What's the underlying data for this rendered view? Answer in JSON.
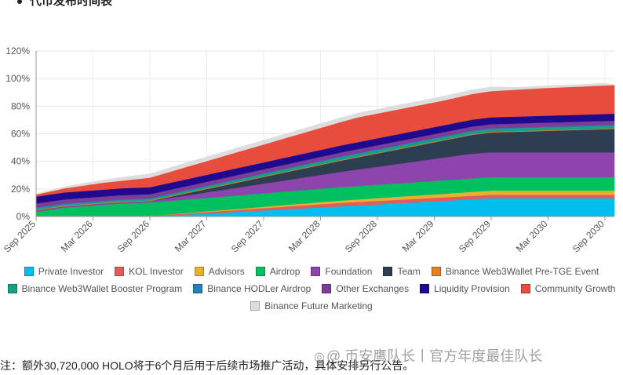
{
  "heading": "代币发布时间表",
  "note": "注：额外30,720,000 HOLO将于6个月后用于后续市场推广活动，具体安排另行公告。",
  "watermark": {
    "icon": "camera-icon",
    "text": "@ 币安鹰队长丨官方年度最佳队长"
  },
  "chart_data": {
    "type": "area",
    "stacked": true,
    "x": [
      0,
      1,
      2,
      3,
      4,
      5,
      6,
      7,
      8,
      9,
      10,
      11,
      12,
      13,
      14,
      15,
      16,
      17,
      18,
      19,
      20,
      21,
      22,
      23,
      24,
      25,
      26,
      27,
      28,
      29,
      30,
      31,
      32,
      33,
      34,
      35,
      36,
      37,
      38,
      39,
      40,
      41,
      42,
      43,
      44,
      45,
      46,
      47,
      48,
      49,
      50,
      51,
      52,
      53,
      54,
      55,
      56,
      57,
      58,
      59,
      60,
      61
    ],
    "x_tick_labels": [
      {
        "x": 0,
        "label": "Sep 2025"
      },
      {
        "x": 6,
        "label": "Mar 2026"
      },
      {
        "x": 12,
        "label": "Sep 2026"
      },
      {
        "x": 18,
        "label": "Mar 2027"
      },
      {
        "x": 24,
        "label": "Sep 2027"
      },
      {
        "x": 30,
        "label": "Mar 2028"
      },
      {
        "x": 36,
        "label": "Sep 2028"
      },
      {
        "x": 42,
        "label": "Mar 2029"
      },
      {
        "x": 48,
        "label": "Sep 2029"
      },
      {
        "x": 54,
        "label": "Mar 2030"
      },
      {
        "x": 60,
        "label": "Sep 2030"
      }
    ],
    "ylim": [
      0,
      120
    ],
    "y_ticks": [
      0,
      20,
      40,
      60,
      80,
      100,
      120
    ],
    "y_tick_format": "{v}%",
    "grid": true,
    "legend_position": "bottom",
    "series": [
      {
        "name": "Private Investor",
        "color": "#00bfef",
        "values": [
          0,
          0,
          0,
          0,
          0,
          0,
          0,
          0,
          0,
          0,
          0,
          0,
          0,
          0.37,
          0.74,
          1.11,
          1.48,
          1.85,
          2.22,
          2.59,
          2.96,
          3.33,
          3.7,
          4.07,
          4.44,
          4.81,
          5.18,
          5.55,
          5.92,
          6.29,
          6.66,
          7.03,
          7.4,
          7.77,
          8.14,
          8.51,
          8.88,
          9.25,
          9.62,
          9.99,
          10.36,
          10.73,
          11.1,
          11.47,
          11.84,
          12.21,
          12.58,
          12.95,
          13.32,
          13.32,
          13.32,
          13.32,
          13.32,
          13.32,
          13.32,
          13.32,
          13.32,
          13.32,
          13.32,
          13.32,
          13.32,
          13.32
        ]
      },
      {
        "name": "KOL Investor",
        "color": "#e25c5c",
        "values": [
          0.5,
          0.5,
          0.5,
          0.5,
          0.5,
          0.5,
          0.5,
          0.5,
          0.5,
          0.5,
          0.5,
          0.5,
          0.5,
          0.6,
          0.7,
          0.8,
          0.9,
          1.0,
          1.1,
          1.2,
          1.3,
          1.4,
          1.5,
          1.6,
          1.7,
          1.8,
          1.9,
          2.0,
          2.1,
          2.2,
          2.3,
          2.4,
          2.5,
          2.5,
          2.5,
          2.5,
          2.5,
          2.5,
          2.5,
          2.5,
          2.5,
          2.5,
          2.5,
          2.5,
          2.5,
          2.5,
          2.5,
          2.5,
          2.5,
          2.5,
          2.5,
          2.5,
          2.5,
          2.5,
          2.5,
          2.5,
          2.5,
          2.5,
          2.5,
          2.5,
          2.5,
          2.5
        ]
      },
      {
        "name": "Advisors",
        "color": "#e8b030",
        "values": [
          0,
          0,
          0,
          0,
          0,
          0,
          0,
          0,
          0,
          0,
          0,
          0,
          0,
          0.08,
          0.17,
          0.25,
          0.33,
          0.42,
          0.5,
          0.58,
          0.67,
          0.75,
          0.83,
          0.92,
          1.0,
          1.08,
          1.17,
          1.25,
          1.33,
          1.42,
          1.5,
          1.58,
          1.67,
          1.75,
          1.83,
          1.92,
          2.0,
          2.08,
          2.17,
          2.25,
          2.33,
          2.42,
          2.5,
          2.58,
          2.67,
          2.75,
          2.83,
          2.92,
          3.0,
          3.0,
          3.0,
          3.0,
          3.0,
          3.0,
          3.0,
          3.0,
          3.0,
          3.0,
          3.0,
          3.0,
          3.0,
          3.0
        ]
      },
      {
        "name": "Airdrop",
        "color": "#00c060",
        "values": [
          3.0,
          4.0,
          5.0,
          6.0,
          6.5,
          7.0,
          7.5,
          8.0,
          8.5,
          9.0,
          9.25,
          9.5,
          9.75,
          9.75,
          9.75,
          9.75,
          9.75,
          9.75,
          9.75,
          9.75,
          9.75,
          9.75,
          9.75,
          9.75,
          9.75,
          9.75,
          9.75,
          9.75,
          9.75,
          9.75,
          9.75,
          9.75,
          9.75,
          9.75,
          9.75,
          9.75,
          9.75,
          9.75,
          9.75,
          9.75,
          9.75,
          9.75,
          9.75,
          9.75,
          9.75,
          9.75,
          9.75,
          9.75,
          9.75,
          9.75,
          9.75,
          9.75,
          9.75,
          9.75,
          9.75,
          9.75,
          9.75,
          9.75,
          9.75,
          9.75,
          9.75,
          9.75
        ]
      },
      {
        "name": "Foundation",
        "color": "#8e44ad",
        "values": [
          1.0,
          1.0,
          1.0,
          1.0,
          1.0,
          1.0,
          1.0,
          1.0,
          1.0,
          1.0,
          1.0,
          1.0,
          1.0,
          1.5,
          2.0,
          2.5,
          3.0,
          3.5,
          4.0,
          4.5,
          5.0,
          5.5,
          6.0,
          6.5,
          7.0,
          7.5,
          8.0,
          8.5,
          9.0,
          9.5,
          10.0,
          10.5,
          11.0,
          11.5,
          12.0,
          12.5,
          13.0,
          13.5,
          14.0,
          14.5,
          15.0,
          15.5,
          16.0,
          16.5,
          17.0,
          17.5,
          18.0,
          18.0,
          18.0,
          18.0,
          18.0,
          18.0,
          18.0,
          18.0,
          18.0,
          18.0,
          18.0,
          18.0,
          18.0,
          18.0,
          18.0,
          18.0
        ]
      },
      {
        "name": "Team",
        "color": "#2c3e50",
        "values": [
          0,
          0,
          0,
          0,
          0,
          0,
          0,
          0,
          0,
          0,
          0,
          0,
          0,
          0.4,
          0.8,
          1.2,
          1.6,
          2.0,
          2.4,
          2.8,
          3.2,
          3.6,
          4.0,
          4.4,
          4.8,
          5.2,
          5.6,
          6.0,
          6.4,
          6.8,
          7.2,
          7.6,
          8.0,
          8.4,
          8.8,
          9.2,
          9.6,
          10.0,
          10.4,
          10.8,
          11.2,
          11.6,
          12.0,
          12.4,
          12.8,
          13.2,
          13.6,
          14.0,
          14.4,
          14.6,
          14.8,
          15.0,
          15.2,
          15.4,
          15.6,
          15.8,
          16.0,
          16.2,
          16.4,
          16.6,
          16.8,
          17.0
        ]
      },
      {
        "name": "Binance Web3Wallet Pre-TGE Event",
        "color": "#e67e22",
        "values": [
          0.5,
          0.5,
          0.5,
          0.5,
          0.5,
          0.5,
          0.5,
          0.5,
          0.5,
          0.5,
          0.5,
          0.5,
          0.5,
          0.5,
          0.5,
          0.5,
          0.5,
          0.5,
          0.5,
          0.5,
          0.5,
          0.5,
          0.5,
          0.5,
          0.5,
          0.5,
          0.5,
          0.5,
          0.5,
          0.5,
          0.5,
          0.5,
          0.5,
          0.5,
          0.5,
          0.5,
          0.5,
          0.5,
          0.5,
          0.5,
          0.5,
          0.5,
          0.5,
          0.5,
          0.5,
          0.5,
          0.5,
          0.5,
          0.5,
          0.5,
          0.5,
          0.5,
          0.5,
          0.5,
          0.5,
          0.5,
          0.5,
          0.5,
          0.5,
          0.5,
          0.5,
          0.5
        ]
      },
      {
        "name": "Binance Web3Wallet Booster Program",
        "color": "#16a085",
        "values": [
          1.0,
          1.0,
          1.0,
          1.0,
          1.0,
          1.0,
          1.0,
          1.0,
          1.0,
          1.0,
          1.0,
          1.0,
          1.0,
          1.05,
          1.1,
          1.15,
          1.2,
          1.25,
          1.3,
          1.35,
          1.4,
          1.45,
          1.5,
          1.55,
          1.6,
          1.65,
          1.7,
          1.75,
          1.8,
          1.85,
          1.9,
          1.95,
          2.0,
          2.0,
          2.0,
          2.0,
          2.0,
          2.0,
          2.0,
          2.0,
          2.0,
          2.0,
          2.0,
          2.0,
          2.0,
          2.0,
          2.0,
          2.0,
          2.0,
          2.0,
          2.0,
          2.0,
          2.0,
          2.0,
          2.0,
          2.0,
          2.0,
          2.0,
          2.0,
          2.0,
          2.0,
          2.0
        ]
      },
      {
        "name": "Binance HODLer Airdrop",
        "color": "#2980b9",
        "values": [
          0.5,
          0.5,
          0.5,
          0.5,
          0.5,
          0.5,
          0.5,
          0.5,
          0.5,
          0.5,
          0.5,
          0.5,
          0.5,
          0.5,
          0.5,
          0.5,
          0.5,
          0.5,
          0.5,
          0.5,
          0.5,
          0.5,
          0.5,
          0.5,
          0.5,
          0.5,
          0.5,
          0.5,
          0.5,
          0.5,
          0.5,
          0.5,
          0.5,
          0.5,
          0.5,
          0.5,
          0.5,
          0.5,
          0.5,
          0.5,
          0.5,
          0.5,
          0.5,
          0.5,
          0.5,
          0.5,
          0.5,
          0.5,
          0.5,
          0.5,
          0.5,
          0.5,
          0.5,
          0.5,
          0.5,
          0.5,
          0.5,
          0.5,
          0.5,
          0.5,
          0.5,
          0.5
        ]
      },
      {
        "name": "Other Exchanges",
        "color": "#7d3c98",
        "values": [
          3.0,
          3.0,
          3.0,
          3.0,
          3.0,
          3.0,
          3.0,
          3.0,
          3.0,
          3.0,
          3.0,
          3.0,
          3.0,
          3.0,
          3.0,
          3.0,
          3.0,
          3.0,
          3.0,
          3.0,
          3.0,
          3.0,
          3.0,
          3.0,
          3.0,
          3.0,
          3.0,
          3.0,
          3.0,
          3.0,
          3.0,
          3.0,
          3.0,
          3.0,
          3.0,
          3.0,
          3.0,
          3.0,
          3.0,
          3.0,
          3.0,
          3.0,
          3.0,
          3.0,
          3.0,
          3.0,
          3.0,
          3.0,
          3.0,
          3.0,
          3.0,
          3.0,
          3.0,
          3.0,
          3.0,
          3.0,
          3.0,
          3.0,
          3.0,
          3.0,
          3.0,
          3.0
        ]
      },
      {
        "name": "Liquidity Provision",
        "color": "#1f0a8f",
        "values": [
          5.0,
          5.0,
          5.0,
          5.0,
          5.0,
          5.0,
          5.0,
          5.0,
          5.0,
          5.0,
          5.0,
          5.0,
          5.0,
          5.0,
          5.0,
          5.0,
          5.0,
          5.0,
          5.0,
          5.0,
          5.0,
          5.0,
          5.0,
          5.0,
          5.0,
          5.0,
          5.0,
          5.0,
          5.0,
          5.0,
          5.0,
          5.0,
          5.0,
          5.0,
          5.0,
          5.0,
          5.0,
          5.0,
          5.0,
          5.0,
          5.0,
          5.0,
          5.0,
          5.0,
          5.0,
          5.0,
          5.0,
          5.0,
          5.0,
          5.0,
          5.0,
          5.0,
          5.0,
          5.0,
          5.0,
          5.0,
          5.0,
          5.0,
          5.0,
          5.0,
          5.0,
          5.0
        ]
      },
      {
        "name": "Community Growth",
        "color": "#e74c3c",
        "values": [
          1.5,
          2.0,
          2.5,
          3.0,
          3.5,
          4.0,
          4.5,
          5.0,
          5.25,
          5.5,
          6.0,
          6.5,
          7.0,
          7.5,
          8.0,
          8.5,
          9.0,
          9.5,
          10.0,
          10.5,
          11.0,
          11.5,
          12.0,
          12.5,
          13.0,
          13.5,
          14.0,
          14.5,
          15.0,
          15.5,
          16.0,
          16.5,
          17.0,
          17.5,
          18.0,
          18.0,
          18.0,
          18.0,
          18.0,
          18.0,
          18.0,
          18.0,
          18.0,
          18.0,
          18.2,
          18.4,
          18.6,
          18.8,
          19.0,
          19.2,
          19.4,
          19.6,
          19.8,
          20.0,
          20.1,
          20.2,
          20.3,
          20.4,
          20.5,
          20.6,
          20.7,
          20.8
        ]
      },
      {
        "name": "Binance Future Marketing",
        "color": "#dddddd",
        "values": [
          0.5,
          0.7,
          0.9,
          1.1,
          1.3,
          1.5,
          1.7,
          1.9,
          2.1,
          2.3,
          2.5,
          2.6,
          2.7,
          2.8,
          2.9,
          3.0,
          3.0,
          3.0,
          3.0,
          3.0,
          3.0,
          3.0,
          3.0,
          3.0,
          3.0,
          3.0,
          3.0,
          3.0,
          3.0,
          3.0,
          3.0,
          3.0,
          3.0,
          3.0,
          3.0,
          3.0,
          3.0,
          3.0,
          3.0,
          3.0,
          3.0,
          3.0,
          3.0,
          3.0,
          3.0,
          3.0,
          3.0,
          3.0,
          3.0,
          2.5,
          2.0,
          1.5,
          1.5,
          1.5,
          1.5,
          1.5,
          1.5,
          1.5,
          1.5,
          1.5,
          1.5,
          0
        ]
      }
    ]
  }
}
